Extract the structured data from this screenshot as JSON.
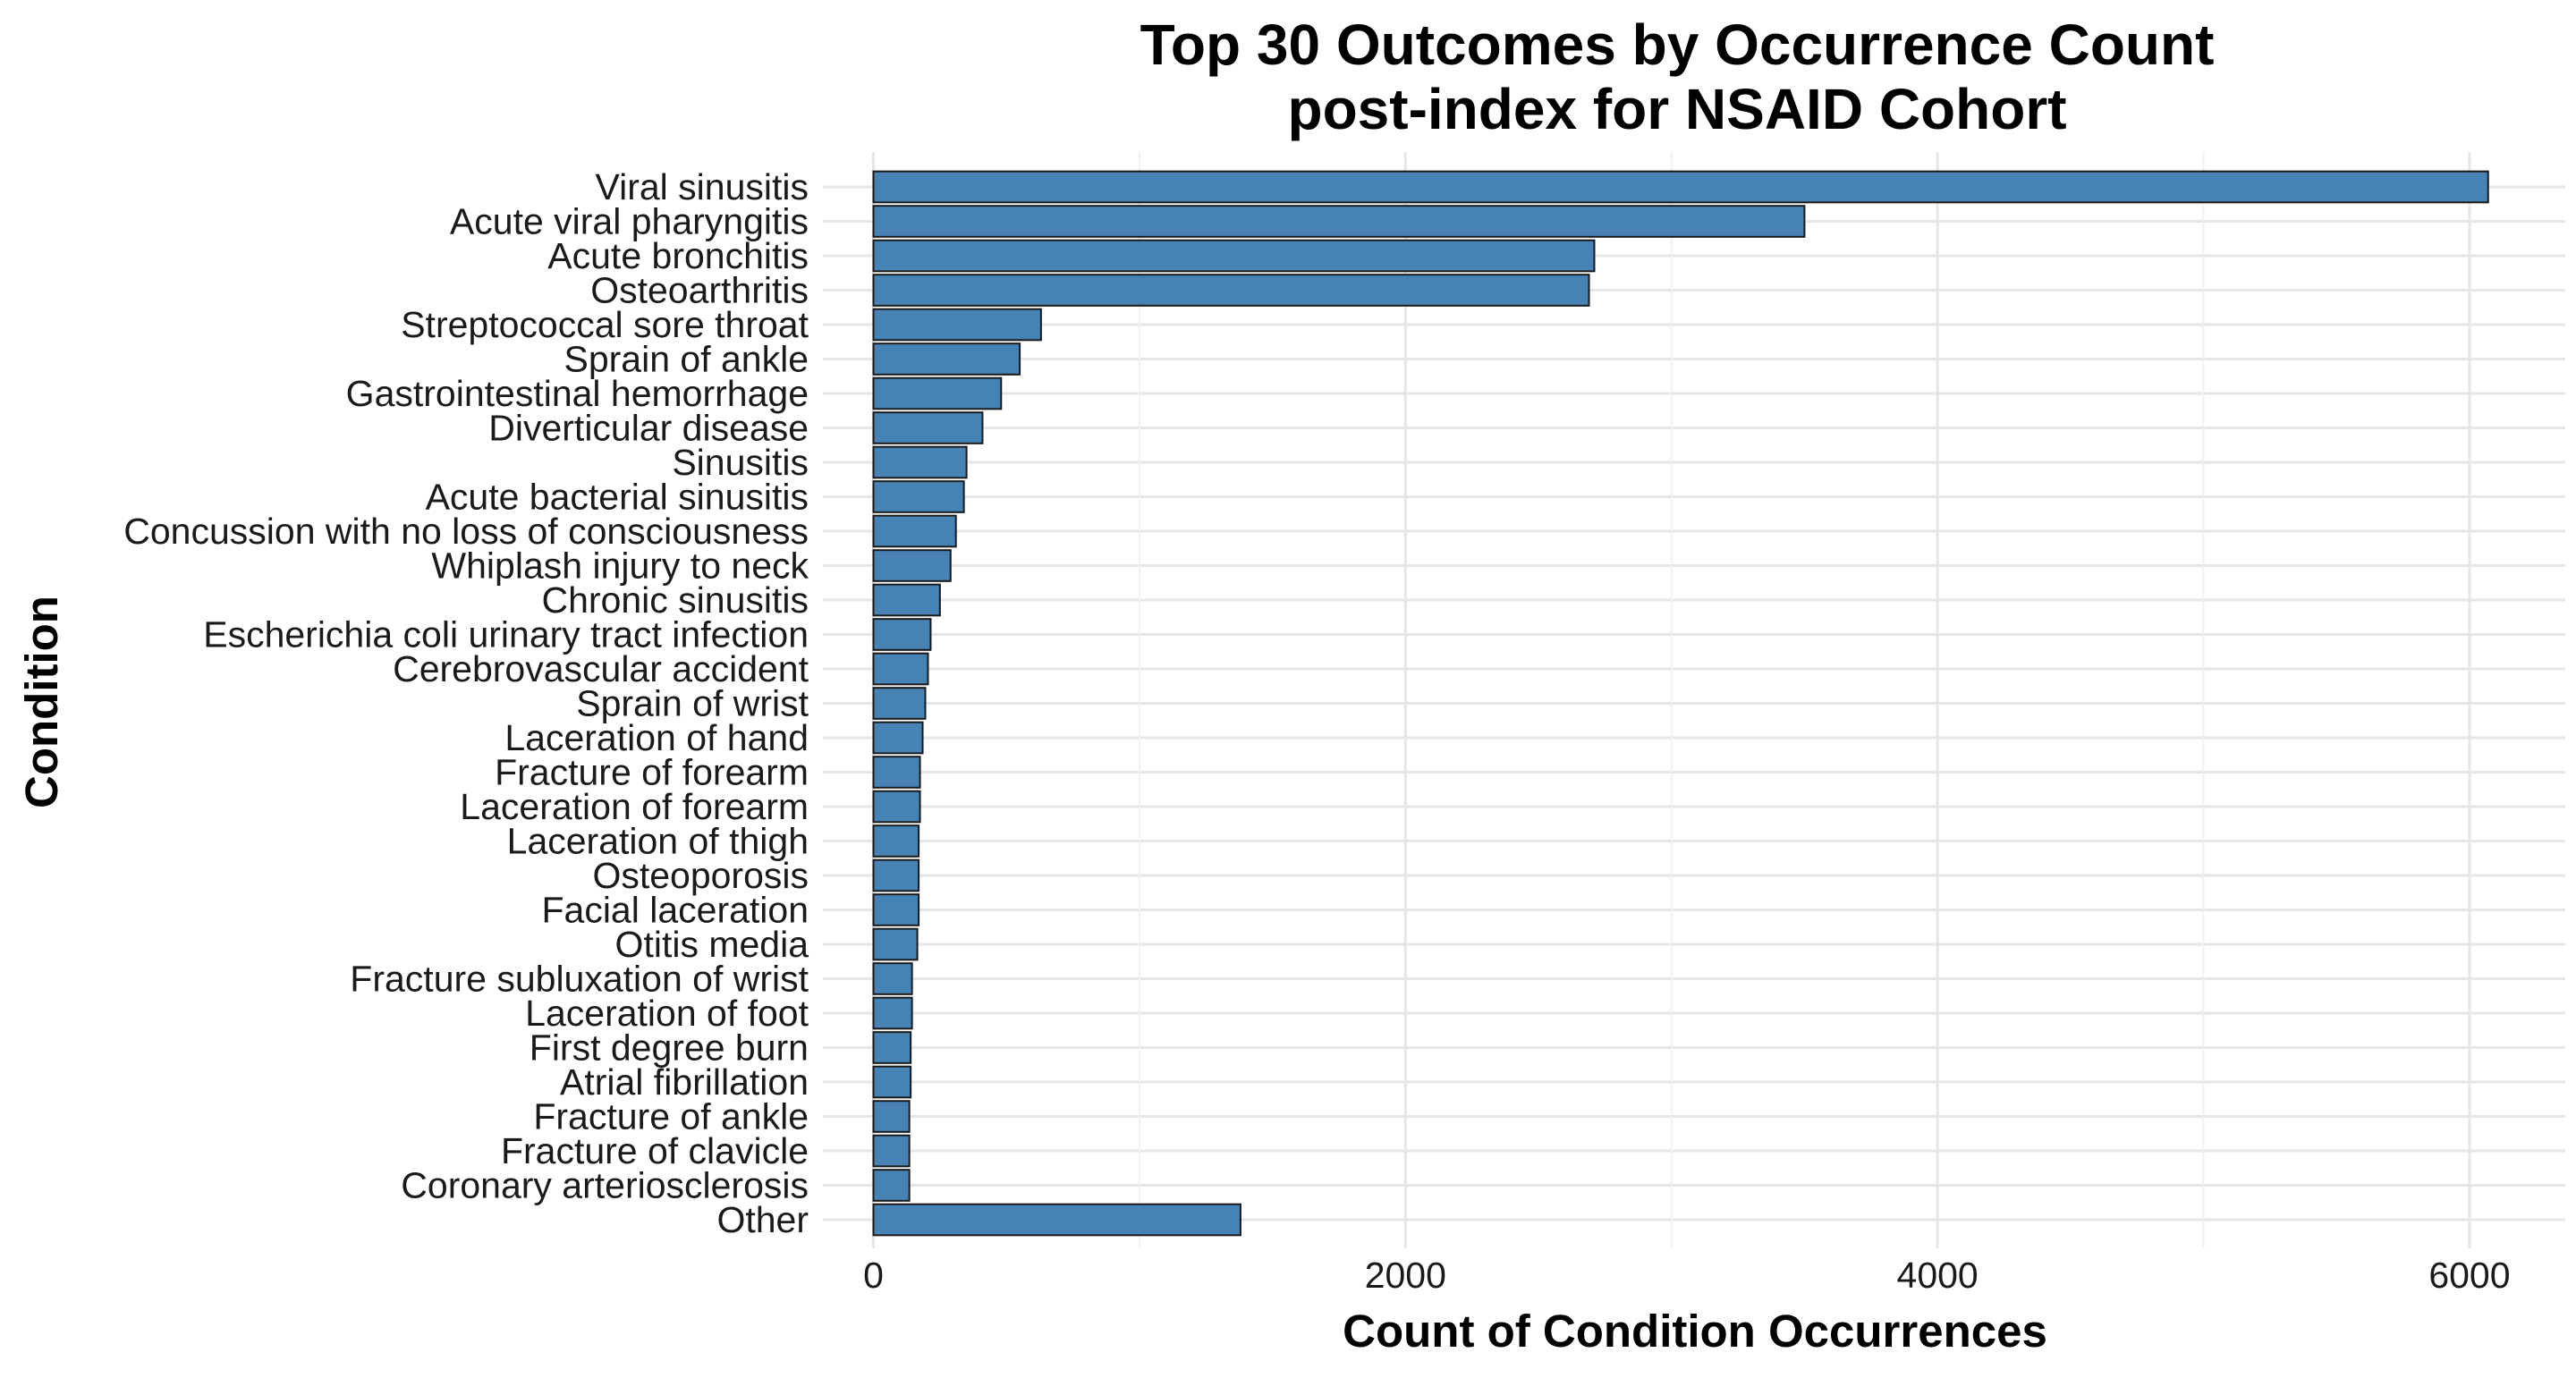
{
  "chart_data": {
    "type": "bar",
    "orientation": "horizontal",
    "title_lines": [
      "Top 30 Outcomes by Occurrence Count",
      "post-index for NSAID Cohort"
    ],
    "xlabel": "Count of Condition Occurrences",
    "ylabel": "Condition",
    "xlim": [
      -190,
      6360
    ],
    "xticks": [
      0,
      2000,
      4000,
      6000
    ],
    "xtick_labels": [
      "0",
      "2000",
      "4000",
      "6000"
    ],
    "grid": true,
    "legend": "none",
    "bar_color": "#4682B4",
    "bar_edge_color": "#1a1a1a",
    "categories": [
      "Viral sinusitis",
      "Acute viral pharyngitis",
      "Acute bronchitis",
      "Osteoarthritis",
      "Streptococcal sore throat",
      "Sprain of ankle",
      "Gastrointestinal hemorrhage",
      "Diverticular disease",
      "Sinusitis",
      "Acute bacterial sinusitis",
      "Concussion with no loss of consciousness",
      "Whiplash injury to neck",
      "Chronic sinusitis",
      "Escherichia coli urinary tract infection",
      "Cerebrovascular accident",
      "Sprain of wrist",
      "Laceration of hand",
      "Fracture of forearm",
      "Laceration of forearm",
      "Laceration of thigh",
      "Osteoporosis",
      "Facial laceration",
      "Otitis media",
      "Fracture subluxation of wrist",
      "Laceration of foot",
      "First degree burn",
      "Atrial fibrillation",
      "Fracture of ankle",
      "Fracture of clavicle",
      "Coronary arteriosclerosis",
      "Other"
    ],
    "values": [
      6070,
      3500,
      2710,
      2690,
      630,
      550,
      480,
      410,
      350,
      340,
      310,
      290,
      250,
      215,
      205,
      195,
      185,
      175,
      175,
      170,
      170,
      170,
      165,
      145,
      145,
      140,
      140,
      135,
      135,
      135,
      1380
    ]
  }
}
